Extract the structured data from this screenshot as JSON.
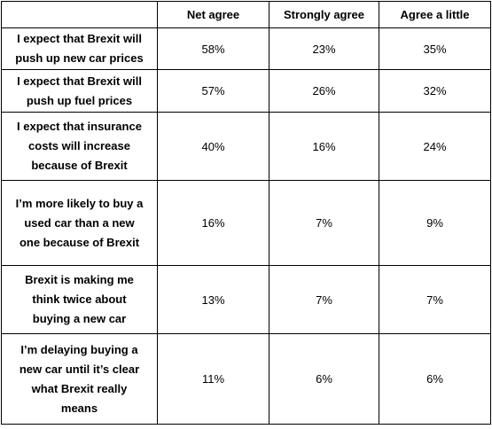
{
  "table": {
    "headers": [
      "",
      "Net agree",
      "Strongly agree",
      "Agree a little"
    ],
    "rows": [
      {
        "label_lines": [
          "I expect that Brexit will",
          "push up new car prices"
        ],
        "net_agree": "58%",
        "strongly_agree": "23%",
        "agree_a_little": "35%"
      },
      {
        "label_lines": [
          "I expect that Brexit will",
          "push up fuel prices"
        ],
        "net_agree": "57%",
        "strongly_agree": "26%",
        "agree_a_little": "32%"
      },
      {
        "label_lines": [
          "I expect that insurance",
          "costs will increase",
          "because of Brexit"
        ],
        "net_agree": "40%",
        "strongly_agree": "16%",
        "agree_a_little": "24%"
      },
      {
        "label_lines": [
          "I’m more likely to buy a",
          "used car than a new",
          "one because of Brexit"
        ],
        "net_agree": "16%",
        "strongly_agree": "7%",
        "agree_a_little": "9%"
      },
      {
        "label_lines": [
          "Brexit is making me",
          "think twice about",
          "buying a new car"
        ],
        "net_agree": "13%",
        "strongly_agree": "7%",
        "agree_a_little": "7%"
      },
      {
        "label_lines": [
          "I’m delaying buying a",
          "new car until it’s clear",
          "what Brexit really",
          "means"
        ],
        "net_agree": "11%",
        "strongly_agree": "6%",
        "agree_a_little": "6%"
      }
    ]
  }
}
